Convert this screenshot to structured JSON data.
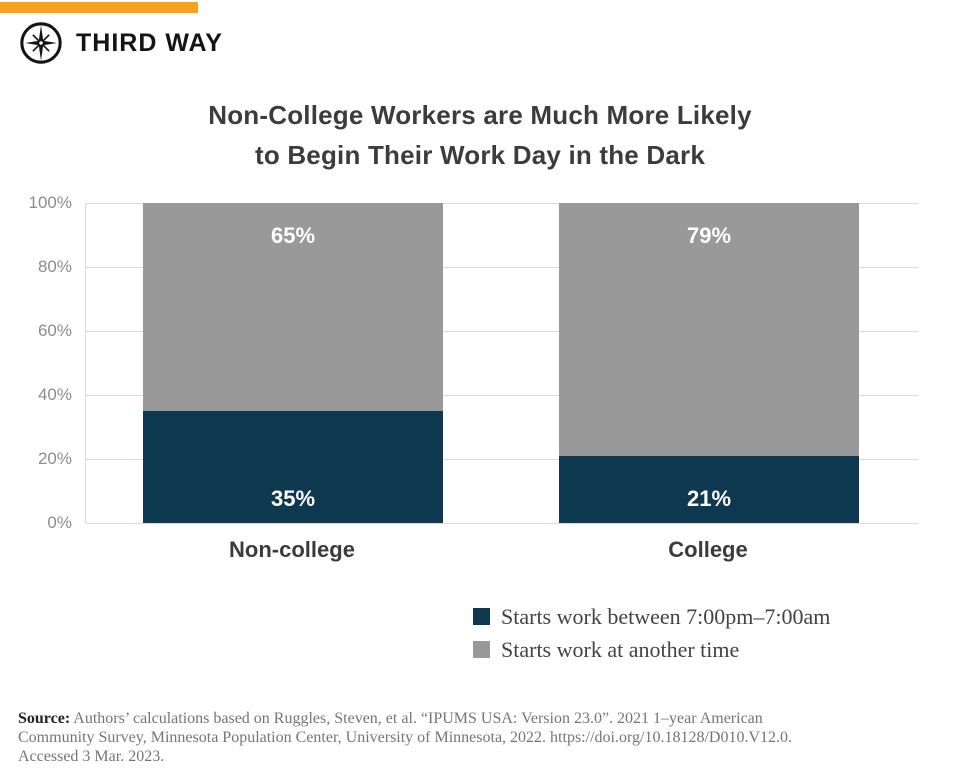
{
  "brand": {
    "name": "THIRD WAY",
    "accent_color": "#F9A11B"
  },
  "title": {
    "line1": "Non-College Workers are Much More Likely",
    "line2": "to Begin Their Work Day in the Dark"
  },
  "chart_data": {
    "type": "bar",
    "stacked": true,
    "title": "Non-College Workers are Much More Likely to Begin Their Work Day in the Dark",
    "categories": [
      "Non-college",
      "College"
    ],
    "series": [
      {
        "name": "Starts work between 7:00pm–7:00am",
        "color": "#0D3850",
        "values": [
          35,
          21
        ]
      },
      {
        "name": "Starts work at another time",
        "color": "#999999",
        "values": [
          65,
          79
        ]
      }
    ],
    "value_labels": [
      [
        "35%",
        "21%"
      ],
      [
        "65%",
        "79%"
      ]
    ],
    "xlabel": "",
    "ylabel": "",
    "ylim": [
      0,
      100
    ],
    "yticks": [
      "100%",
      "80%",
      "60%",
      "40%",
      "20%",
      "0%"
    ],
    "grid": true,
    "gridline_color": "#D9D9D9",
    "legend_position": "bottom-right"
  },
  "source": {
    "label": "Source:",
    "lines": [
      "Authors’ calculations based on Ruggles, Steven, et al. “IPUMS USA: Version 23.0”. 2021 1–year American",
      "Community Survey, Minnesota Population Center, University of Minnesota, 2022. https://doi.org/10.18128/D010.V12.0.",
      "Accessed 3 Mar. 2023."
    ]
  }
}
